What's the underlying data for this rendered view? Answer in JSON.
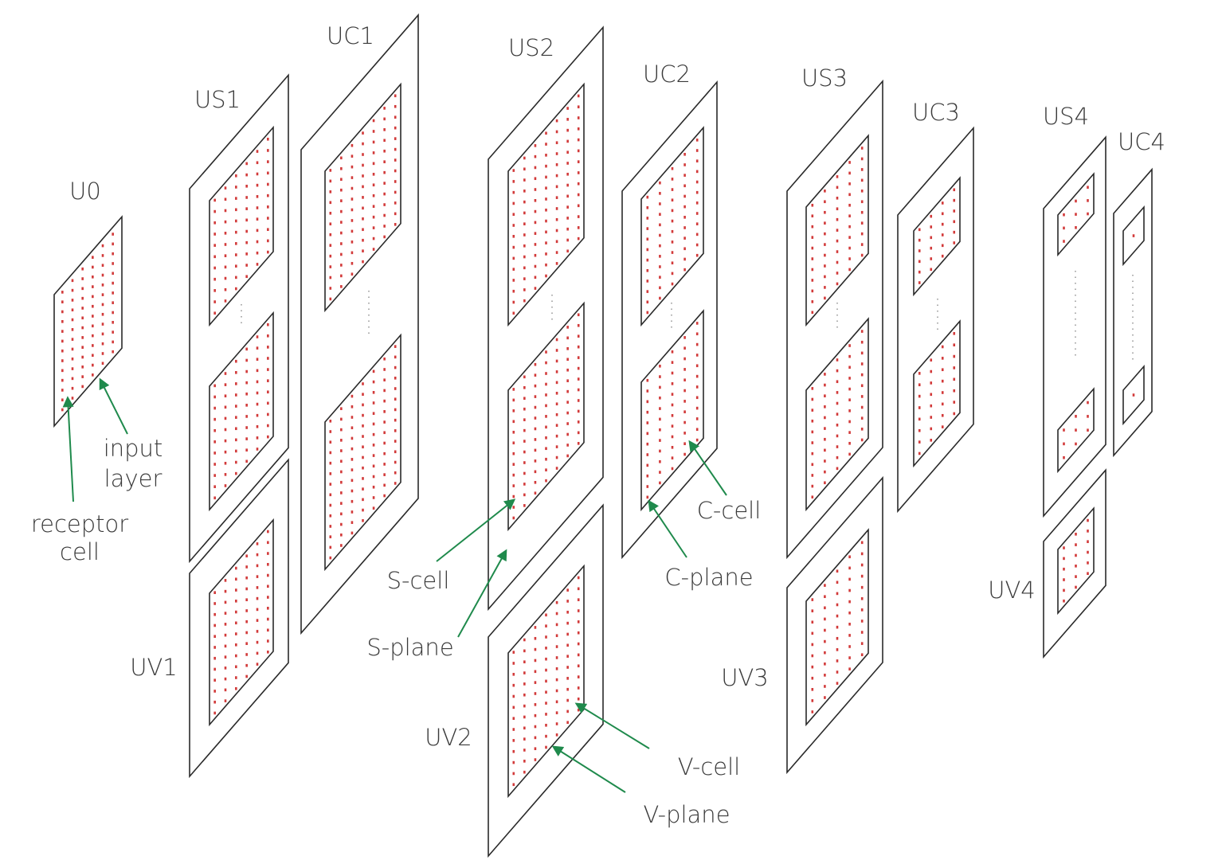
{
  "layers": [
    {
      "label": "U0"
    },
    {
      "label": "US1"
    },
    {
      "label": "UC1"
    },
    {
      "label": "US2"
    },
    {
      "label": "UC2"
    },
    {
      "label": "US3"
    },
    {
      "label": "UC3"
    },
    {
      "label": "US4"
    },
    {
      "label": "UC4"
    },
    {
      "label": "UV1"
    },
    {
      "label": "UV2"
    },
    {
      "label": "UV3"
    },
    {
      "label": "UV4"
    }
  ],
  "annotations": [
    {
      "lines": [
        "input",
        "layer"
      ]
    },
    {
      "lines": [
        "receptor",
        "cell"
      ]
    },
    {
      "lines": [
        "S-cell"
      ]
    },
    {
      "lines": [
        "S-plane"
      ]
    },
    {
      "lines": [
        "C-cell"
      ]
    },
    {
      "lines": [
        "C-plane"
      ]
    },
    {
      "lines": [
        "V-cell"
      ]
    },
    {
      "lines": [
        "V-plane"
      ]
    }
  ]
}
